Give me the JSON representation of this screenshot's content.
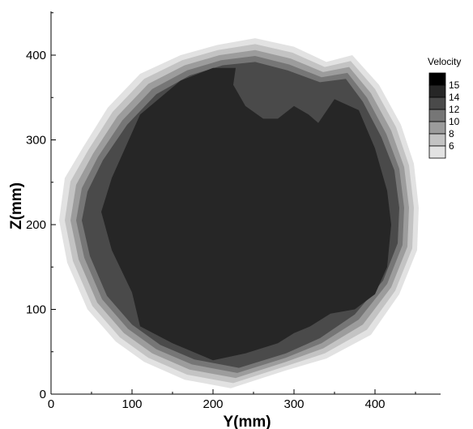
{
  "chart_data": {
    "type": "contour",
    "title": "",
    "xlabel": "Y(mm)",
    "ylabel": "Z(mm)",
    "xlim": [
      0,
      485
    ],
    "ylim": [
      0,
      455
    ],
    "x_ticks": [
      0,
      100,
      200,
      300,
      400
    ],
    "y_ticks": [
      0,
      100,
      200,
      300,
      400
    ],
    "grid": false,
    "legend": {
      "title": "Velocity",
      "placement": "right",
      "levels": [
        {
          "label": "15",
          "color": "#000000"
        },
        {
          "label": "14",
          "color": "#262626"
        },
        {
          "label": "12",
          "color": "#4a4a4a"
        },
        {
          "label": "10",
          "color": "#767676"
        },
        {
          "label": "8",
          "color": "#9c9c9c"
        },
        {
          "label": "6",
          "color": "#c3c3c3"
        },
        {
          "label": "",
          "color": "#e2e2e2"
        }
      ]
    },
    "contour_levels": [
      {
        "level": "6",
        "color": "#e2e2e2",
        "points": [
          [
            222,
            7
          ],
          [
            290,
            28
          ],
          [
            340,
            42
          ],
          [
            395,
            70
          ],
          [
            430,
            118
          ],
          [
            452,
            170
          ],
          [
            454,
            220
          ],
          [
            448,
            272
          ],
          [
            432,
            318
          ],
          [
            405,
            365
          ],
          [
            372,
            400
          ],
          [
            340,
            392
          ],
          [
            300,
            410
          ],
          [
            252,
            420
          ],
          [
            205,
            412
          ],
          [
            160,
            400
          ],
          [
            110,
            378
          ],
          [
            70,
            338
          ],
          [
            40,
            292
          ],
          [
            17,
            255
          ],
          [
            10,
            205
          ],
          [
            20,
            155
          ],
          [
            45,
            100
          ],
          [
            80,
            62
          ],
          [
            115,
            38
          ],
          [
            165,
            17
          ]
        ]
      },
      {
        "level": "8",
        "color": "#c3c3c3",
        "points": [
          [
            225,
            13
          ],
          [
            290,
            33
          ],
          [
            338,
            48
          ],
          [
            390,
            76
          ],
          [
            425,
            122
          ],
          [
            446,
            172
          ],
          [
            448,
            220
          ],
          [
            442,
            270
          ],
          [
            426,
            315
          ],
          [
            400,
            360
          ],
          [
            370,
            393
          ],
          [
            338,
            386
          ],
          [
            298,
            403
          ],
          [
            252,
            413
          ],
          [
            206,
            406
          ],
          [
            162,
            394
          ],
          [
            115,
            372
          ],
          [
            76,
            333
          ],
          [
            46,
            288
          ],
          [
            24,
            251
          ],
          [
            17,
            205
          ],
          [
            27,
            157
          ],
          [
            51,
            104
          ],
          [
            85,
            67
          ],
          [
            120,
            43
          ],
          [
            168,
            23
          ]
        ]
      },
      {
        "level": "10",
        "color": "#9c9c9c",
        "points": [
          [
            228,
            19
          ],
          [
            290,
            38
          ],
          [
            336,
            54
          ],
          [
            385,
            82
          ],
          [
            420,
            126
          ],
          [
            440,
            174
          ],
          [
            442,
            220
          ],
          [
            436,
            268
          ],
          [
            420,
            311
          ],
          [
            395,
            355
          ],
          [
            368,
            386
          ],
          [
            336,
            380
          ],
          [
            296,
            396
          ],
          [
            252,
            406
          ],
          [
            208,
            400
          ],
          [
            165,
            388
          ],
          [
            120,
            366
          ],
          [
            82,
            328
          ],
          [
            52,
            284
          ],
          [
            31,
            247
          ],
          [
            24,
            205
          ],
          [
            34,
            159
          ],
          [
            57,
            108
          ],
          [
            90,
            72
          ],
          [
            125,
            48
          ],
          [
            171,
            29
          ]
        ]
      },
      {
        "level": "12",
        "color": "#767676",
        "points": [
          [
            230,
            25
          ],
          [
            290,
            43
          ],
          [
            334,
            60
          ],
          [
            380,
            88
          ],
          [
            415,
            130
          ],
          [
            434,
            176
          ],
          [
            436,
            220
          ],
          [
            430,
            266
          ],
          [
            414,
            307
          ],
          [
            390,
            350
          ],
          [
            366,
            379
          ],
          [
            334,
            374
          ],
          [
            294,
            389
          ],
          [
            252,
            399
          ],
          [
            210,
            394
          ],
          [
            168,
            382
          ],
          [
            125,
            360
          ],
          [
            88,
            323
          ],
          [
            58,
            280
          ],
          [
            38,
            243
          ],
          [
            31,
            205
          ],
          [
            41,
            161
          ],
          [
            63,
            112
          ],
          [
            95,
            77
          ],
          [
            130,
            53
          ],
          [
            174,
            35
          ]
        ]
      },
      {
        "level": "14",
        "color": "#4a4a4a",
        "points": [
          [
            232,
            31
          ],
          [
            290,
            48
          ],
          [
            332,
            66
          ],
          [
            375,
            94
          ],
          [
            410,
            134
          ],
          [
            428,
            178
          ],
          [
            430,
            220
          ],
          [
            424,
            264
          ],
          [
            408,
            303
          ],
          [
            385,
            345
          ],
          [
            364,
            372
          ],
          [
            332,
            368
          ],
          [
            292,
            382
          ],
          [
            252,
            392
          ],
          [
            212,
            388
          ],
          [
            171,
            376
          ],
          [
            130,
            354
          ],
          [
            94,
            318
          ],
          [
            64,
            276
          ],
          [
            45,
            239
          ],
          [
            38,
            205
          ],
          [
            48,
            163
          ],
          [
            69,
            116
          ],
          [
            100,
            82
          ],
          [
            135,
            58
          ],
          [
            177,
            41
          ]
        ]
      },
      {
        "level": "15",
        "color": "#262626",
        "points": [
          [
            200,
            40
          ],
          [
            240,
            48
          ],
          [
            280,
            60
          ],
          [
            300,
            72
          ],
          [
            320,
            80
          ],
          [
            345,
            95
          ],
          [
            375,
            100
          ],
          [
            400,
            118
          ],
          [
            415,
            150
          ],
          [
            420,
            200
          ],
          [
            415,
            240
          ],
          [
            400,
            290
          ],
          [
            380,
            335
          ],
          [
            350,
            348
          ],
          [
            330,
            320
          ],
          [
            318,
            330
          ],
          [
            300,
            340
          ],
          [
            280,
            325
          ],
          [
            262,
            325
          ],
          [
            240,
            340
          ],
          [
            225,
            365
          ],
          [
            228,
            385
          ],
          [
            200,
            385
          ],
          [
            160,
            370
          ],
          [
            110,
            330
          ],
          [
            75,
            255
          ],
          [
            62,
            215
          ],
          [
            75,
            170
          ],
          [
            100,
            120
          ],
          [
            110,
            80
          ],
          [
            150,
            60
          ]
        ]
      }
    ]
  }
}
